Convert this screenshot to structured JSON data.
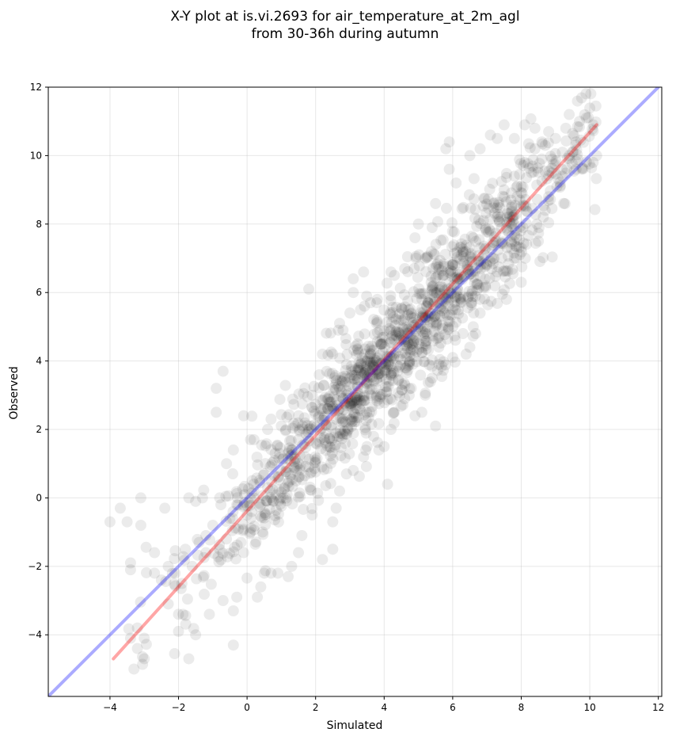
{
  "chart_data": {
    "type": "scatter",
    "title": "X-Y plot at is.vi.2693 for air_temperature_at_2m_agl",
    "subtitle": "from 30-36h during autumn",
    "xlabel": "Simulated",
    "ylabel": "Observed",
    "xlim": [
      -5.8,
      12.1
    ],
    "ylim": [
      -5.8,
      12
    ],
    "xticks": [
      -4,
      -2,
      0,
      2,
      4,
      6,
      8,
      10,
      12
    ],
    "yticks": [
      -4,
      -2,
      0,
      2,
      4,
      6,
      8,
      10,
      12
    ],
    "xtick_labels": [
      "−4",
      "−2",
      "0",
      "2",
      "4",
      "6",
      "8",
      "10",
      "12"
    ],
    "ytick_labels": [
      "−4",
      "−2",
      "0",
      "2",
      "4",
      "6",
      "8",
      "10",
      "12"
    ],
    "grid": true,
    "point_color": "#000000",
    "point_alpha": 0.08,
    "approx_point_count": 1500,
    "scatter_points": [
      [
        -4.0,
        -0.7
      ],
      [
        -3.7,
        -0.3
      ],
      [
        -3.5,
        -0.7
      ],
      [
        -3.1,
        0.0
      ],
      [
        -3.1,
        -0.8
      ],
      [
        -2.4,
        -0.3
      ],
      [
        -1.7,
        0.0
      ],
      [
        -1.5,
        -0.1
      ],
      [
        -1.3,
        0.0
      ],
      [
        -1.2,
        -1.1
      ],
      [
        -0.8,
        0.0
      ],
      [
        -0.7,
        3.7
      ],
      [
        -0.9,
        3.2
      ],
      [
        -0.9,
        2.5
      ],
      [
        -0.6,
        1.0
      ],
      [
        -0.4,
        1.4
      ],
      [
        -0.1,
        2.4
      ],
      [
        0.1,
        1.7
      ],
      [
        0.2,
        1.7
      ],
      [
        0.7,
        2.3
      ],
      [
        0.6,
        2.0
      ],
      [
        1.0,
        2.1
      ],
      [
        1.4,
        2.1
      ],
      [
        1.9,
        3.0
      ],
      [
        1.8,
        6.1
      ],
      [
        2.2,
        4.2
      ],
      [
        2.5,
        4.2
      ],
      [
        2.7,
        5.1
      ],
      [
        2.8,
        4.9
      ],
      [
        2.9,
        3.9
      ],
      [
        3.0,
        5.4
      ],
      [
        3.1,
        6.4
      ],
      [
        3.1,
        6.0
      ],
      [
        3.4,
        6.6
      ],
      [
        3.6,
        5.7
      ],
      [
        3.8,
        5.8
      ],
      [
        4.2,
        6.6
      ],
      [
        4.3,
        6.5
      ],
      [
        4.6,
        6.7
      ],
      [
        4.9,
        7.6
      ],
      [
        5.0,
        8.0
      ],
      [
        5.2,
        7.0
      ],
      [
        5.4,
        7.9
      ],
      [
        5.5,
        8.6
      ],
      [
        5.8,
        10.2
      ],
      [
        5.9,
        10.4
      ],
      [
        5.9,
        9.6
      ],
      [
        6.1,
        9.2
      ],
      [
        6.5,
        10.0
      ],
      [
        6.8,
        10.2
      ],
      [
        7.1,
        10.6
      ],
      [
        7.3,
        10.5
      ],
      [
        7.5,
        10.9
      ],
      [
        7.8,
        10.5
      ],
      [
        8.1,
        10.9
      ],
      [
        8.4,
        10.8
      ],
      [
        8.6,
        10.4
      ],
      [
        8.8,
        10.7
      ],
      [
        9.3,
        10.8
      ],
      [
        9.4,
        11.2
      ],
      [
        9.7,
        11.0
      ],
      [
        9.9,
        11.1
      ],
      [
        10.1,
        10.9
      ],
      [
        10.2,
        10.0
      ],
      [
        10.1,
        9.8
      ],
      [
        9.6,
        9.6
      ],
      [
        9.2,
        9.4
      ],
      [
        8.8,
        8.8
      ],
      [
        8.7,
        8.4
      ],
      [
        8.5,
        7.5
      ],
      [
        8.0,
        7.3
      ],
      [
        8.0,
        6.3
      ],
      [
        7.8,
        7.0
      ],
      [
        7.3,
        6.6
      ],
      [
        7.0,
        6.8
      ],
      [
        6.8,
        5.8
      ],
      [
        6.8,
        5.4
      ],
      [
        6.6,
        5.0
      ],
      [
        6.5,
        4.4
      ],
      [
        6.3,
        4.8
      ],
      [
        6.0,
        4.1
      ],
      [
        5.6,
        3.9
      ],
      [
        5.4,
        3.5
      ],
      [
        5.2,
        3.0
      ],
      [
        5.1,
        2.5
      ],
      [
        5.5,
        2.1
      ],
      [
        4.9,
        2.4
      ],
      [
        4.6,
        2.9
      ],
      [
        4.3,
        2.5
      ],
      [
        4.2,
        2.0
      ],
      [
        4.0,
        1.5
      ],
      [
        4.1,
        0.4
      ],
      [
        3.5,
        1.5
      ],
      [
        3.4,
        1.2
      ],
      [
        3.1,
        0.8
      ],
      [
        2.9,
        0.7
      ],
      [
        2.7,
        0.2
      ],
      [
        2.6,
        -0.3
      ],
      [
        2.5,
        -0.7
      ],
      [
        2.5,
        -1.5
      ],
      [
        2.2,
        -1.8
      ],
      [
        1.9,
        -0.5
      ],
      [
        1.6,
        -1.1
      ],
      [
        1.5,
        -1.6
      ],
      [
        1.3,
        -2.0
      ],
      [
        1.2,
        -2.3
      ],
      [
        0.9,
        -2.2
      ],
      [
        0.7,
        -2.2
      ],
      [
        0.5,
        -2.2
      ],
      [
        0.4,
        -2.6
      ],
      [
        0.3,
        -2.9
      ],
      [
        -0.1,
        -1.6
      ],
      [
        -0.3,
        -2.9
      ],
      [
        -0.4,
        -3.3
      ],
      [
        -0.4,
        -4.3
      ],
      [
        -0.7,
        -3.0
      ],
      [
        -1.1,
        -3.4
      ],
      [
        -1.5,
        -4.0
      ],
      [
        -1.7,
        -4.7
      ],
      [
        -2.0,
        -3.9
      ],
      [
        -2.0,
        -3.4
      ],
      [
        -2.3,
        -3.1
      ],
      [
        -2.7,
        -2.2
      ],
      [
        -3.0,
        -4.1
      ],
      [
        -3.0,
        -4.7
      ],
      [
        -3.2,
        -4.4
      ],
      [
        -3.3,
        -5.0
      ],
      [
        -3.4,
        -4.1
      ],
      [
        -3.4,
        -2.1
      ],
      [
        -3.4,
        -1.9
      ],
      [
        -3.2,
        -3.8
      ],
      [
        -2.7,
        -1.6
      ],
      [
        -2.5,
        -2.4
      ],
      [
        -2.3,
        -2.0
      ],
      [
        -2.1,
        -2.2
      ],
      [
        -1.9,
        -2.5
      ],
      [
        -1.8,
        -1.5
      ],
      [
        -1.6,
        -2.0
      ],
      [
        -1.4,
        -1.3
      ],
      [
        -1.2,
        -1.6
      ],
      [
        -1.0,
        -0.8
      ],
      [
        -0.8,
        -1.5
      ],
      [
        -0.6,
        -1.2
      ],
      [
        -0.5,
        -0.6
      ],
      [
        -0.3,
        -0.2
      ],
      [
        0.0,
        -0.5
      ],
      [
        0.1,
        -1.0
      ],
      [
        0.2,
        0.2
      ],
      [
        0.4,
        -0.2
      ],
      [
        0.5,
        0.7
      ],
      [
        0.6,
        0.3
      ],
      [
        0.8,
        1.1
      ],
      [
        0.9,
        0.6
      ],
      [
        1.1,
        0.3
      ],
      [
        1.2,
        1.3
      ],
      [
        1.4,
        0.9
      ],
      [
        1.5,
        1.7
      ],
      [
        1.7,
        1.2
      ],
      [
        1.8,
        2.0
      ],
      [
        2.0,
        1.6
      ],
      [
        2.1,
        2.4
      ],
      [
        2.3,
        1.9
      ],
      [
        2.4,
        2.8
      ],
      [
        2.6,
        2.3
      ],
      [
        2.7,
        3.2
      ],
      [
        2.9,
        2.7
      ],
      [
        3.0,
        3.5
      ],
      [
        3.2,
        3.0
      ],
      [
        3.3,
        3.9
      ],
      [
        3.5,
        3.4
      ],
      [
        3.6,
        4.2
      ],
      [
        3.8,
        3.7
      ],
      [
        3.9,
        4.5
      ],
      [
        4.1,
        4.1
      ],
      [
        4.2,
        4.9
      ],
      [
        4.4,
        4.4
      ],
      [
        4.5,
        5.2
      ],
      [
        4.7,
        4.8
      ],
      [
        4.8,
        5.4
      ],
      [
        5.0,
        5.0
      ],
      [
        5.1,
        5.8
      ],
      [
        5.3,
        5.3
      ],
      [
        5.4,
        6.1
      ],
      [
        5.6,
        5.7
      ],
      [
        5.7,
        6.5
      ],
      [
        5.9,
        6.0
      ],
      [
        6.0,
        6.8
      ],
      [
        6.2,
        6.4
      ],
      [
        6.3,
        7.2
      ],
      [
        6.5,
        6.9
      ],
      [
        6.6,
        7.6
      ],
      [
        6.8,
        7.3
      ],
      [
        6.9,
        8.1
      ],
      [
        7.1,
        7.8
      ],
      [
        7.2,
        8.6
      ],
      [
        7.4,
        8.2
      ],
      [
        7.5,
        9.0
      ],
      [
        7.7,
        8.7
      ],
      [
        7.8,
        9.4
      ],
      [
        8.0,
        9.1
      ],
      [
        8.1,
        9.8
      ],
      [
        8.3,
        9.5
      ],
      [
        8.4,
        10.2
      ],
      [
        8.6,
        9.9
      ],
      [
        8.7,
        10.3
      ],
      [
        8.9,
        9.9
      ],
      [
        9.0,
        10.5
      ],
      [
        9.2,
        10.1
      ],
      [
        9.4,
        10.0
      ],
      [
        9.6,
        10.4
      ]
    ],
    "lines": [
      {
        "color": "#ff0000",
        "alpha": 0.35,
        "x": [
          -3.9,
          10.2
        ],
        "y": [
          -4.7,
          10.9
        ]
      },
      {
        "color": "#0000ff",
        "alpha": 0.33,
        "x": [
          -5.8,
          12.1
        ],
        "y": [
          -5.8,
          12.1
        ]
      }
    ]
  }
}
